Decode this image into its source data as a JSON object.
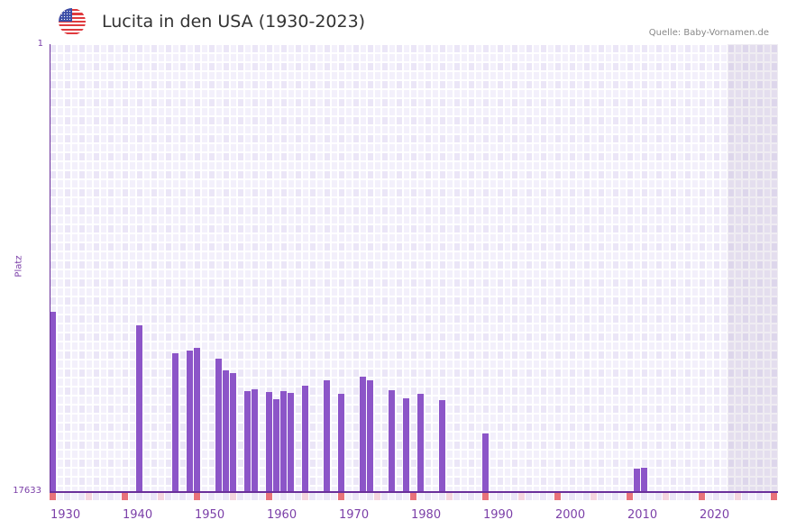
{
  "header": {
    "flag_icon": "us-flag-icon",
    "title": "Lucita in den USA (1930-2023)",
    "source": "Quelle: Baby-Vornamen.de"
  },
  "colors": {
    "bar": "#8c55c8",
    "axis": "#6a2f9a",
    "label": "#7b3fa8",
    "decade_marker": "#e8727a",
    "half_decade_marker": "#f5d5de",
    "grid_light": "#f3f0fb",
    "grid_dark": "#ebe6f7"
  },
  "chart_data": {
    "type": "bar",
    "title": "Lucita in den USA (1930-2023)",
    "xlabel": "",
    "ylabel": "Platz",
    "y_inverted": true,
    "ylim": [
      1,
      17633
    ],
    "y_ticks": [
      "1",
      "17633"
    ],
    "x_range": [
      1930,
      2030
    ],
    "x_ticks": [
      1930,
      1940,
      1950,
      1960,
      1970,
      1980,
      1990,
      2000,
      2010,
      2020
    ],
    "future_shaded_from": 2024,
    "grid": true,
    "categories": [
      1930,
      1942,
      1947,
      1949,
      1950,
      1953,
      1954,
      1955,
      1957,
      1958,
      1960,
      1961,
      1962,
      1963,
      1965,
      1968,
      1970,
      1973,
      1974,
      1977,
      1979,
      1981,
      1984,
      1990,
      2011,
      2012
    ],
    "series": [
      {
        "name": "Platz",
        "values": [
          10560,
          11090,
          12190,
          12090,
          11980,
          12410,
          12880,
          12980,
          13690,
          13610,
          13720,
          14010,
          13690,
          13760,
          13470,
          13260,
          13790,
          13120,
          13260,
          13650,
          13970,
          13790,
          14040,
          15360,
          16740,
          16710
        ]
      }
    ]
  }
}
